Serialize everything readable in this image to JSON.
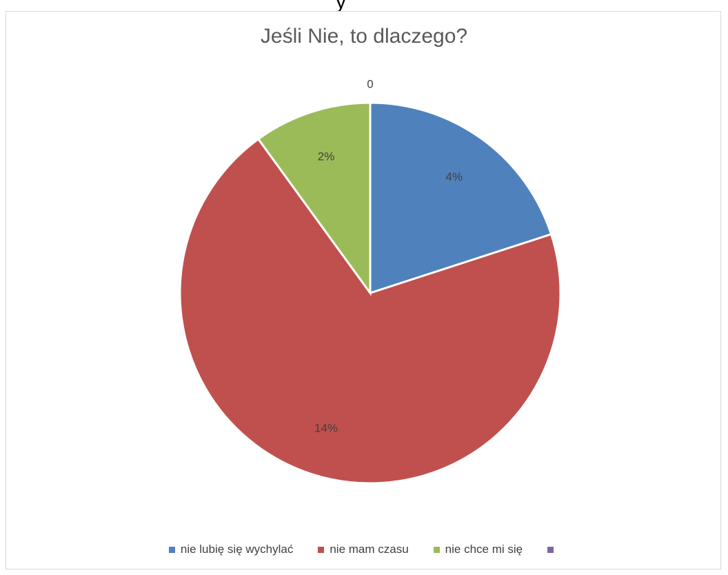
{
  "page": {
    "top_fragment_text": "y"
  },
  "chart_data": {
    "type": "pie",
    "title": "Jeśli Nie, to dlaczego?",
    "legend_position": "bottom",
    "slices": [
      {
        "name": "nie lubię się wychylać",
        "value": 4,
        "label": "4%",
        "color": "#4f81bd"
      },
      {
        "name": "nie mam czasu",
        "value": 14,
        "label": "14%",
        "color": "#c0504d"
      },
      {
        "name": "nie chce mi się",
        "value": 2,
        "label": "2%",
        "color": "#9bbb59"
      },
      {
        "name": "",
        "value": 0,
        "label": "0",
        "color": "#8064a2"
      }
    ]
  }
}
